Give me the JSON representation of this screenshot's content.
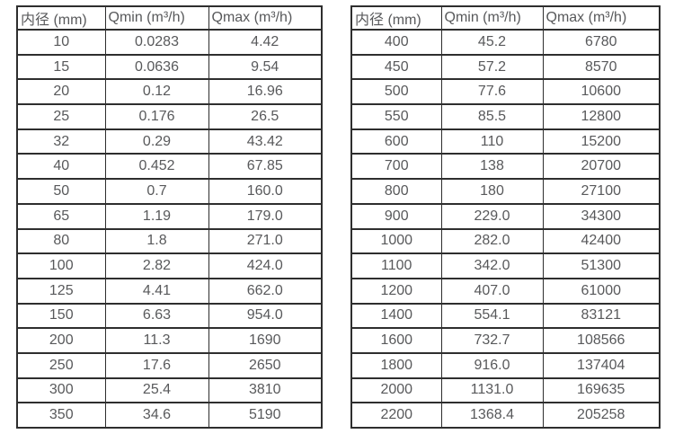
{
  "page": {
    "background": "#ffffff",
    "border_color": "#2e2e2e",
    "text_color": "#58595b"
  },
  "tables": [
    {
      "name": "flow-rate-table-left",
      "headers": {
        "diameter": "内径 (mm)",
        "qmin": "Qmin (m³/h)",
        "qmax": "Qmax (m³/h)"
      },
      "rows": [
        [
          "10",
          "0.0283",
          "4.42"
        ],
        [
          "15",
          "0.0636",
          "9.54"
        ],
        [
          "20",
          "0.12",
          "16.96"
        ],
        [
          "25",
          "0.176",
          "26.5"
        ],
        [
          "32",
          "0.29",
          "43.42"
        ],
        [
          "40",
          "0.452",
          "67.85"
        ],
        [
          "50",
          "0.7",
          "160.0"
        ],
        [
          "65",
          "1.19",
          "179.0"
        ],
        [
          "80",
          "1.8",
          "271.0"
        ],
        [
          "100",
          "2.82",
          "424.0"
        ],
        [
          "125",
          "4.41",
          "662.0"
        ],
        [
          "150",
          "6.63",
          "954.0"
        ],
        [
          "200",
          "11.3",
          "1690"
        ],
        [
          "250",
          "17.6",
          "2650"
        ],
        [
          "300",
          "25.4",
          "3810"
        ],
        [
          "350",
          "34.6",
          "5190"
        ]
      ]
    },
    {
      "name": "flow-rate-table-right",
      "headers": {
        "diameter": "内径 (mm)",
        "qmin": "Qmin (m³/h)",
        "qmax": "Qmax (m³/h)"
      },
      "rows": [
        [
          "400",
          "45.2",
          "6780"
        ],
        [
          "450",
          "57.2",
          "8570"
        ],
        [
          "500",
          "77.6",
          "10600"
        ],
        [
          "550",
          "85.5",
          "12800"
        ],
        [
          "600",
          "110",
          "15200"
        ],
        [
          "700",
          "138",
          "20700"
        ],
        [
          "800",
          "180",
          "27100"
        ],
        [
          "900",
          "229.0",
          "34300"
        ],
        [
          "1000",
          "282.0",
          "42400"
        ],
        [
          "1100",
          "342.0",
          "51300"
        ],
        [
          "1200",
          "407.0",
          "61000"
        ],
        [
          "1400",
          "554.1",
          "83121"
        ],
        [
          "1600",
          "732.7",
          "108566"
        ],
        [
          "1800",
          "916.0",
          "137404"
        ],
        [
          "2000",
          "1131.0",
          "169635"
        ],
        [
          "2200",
          "1368.4",
          "205258"
        ]
      ]
    }
  ]
}
